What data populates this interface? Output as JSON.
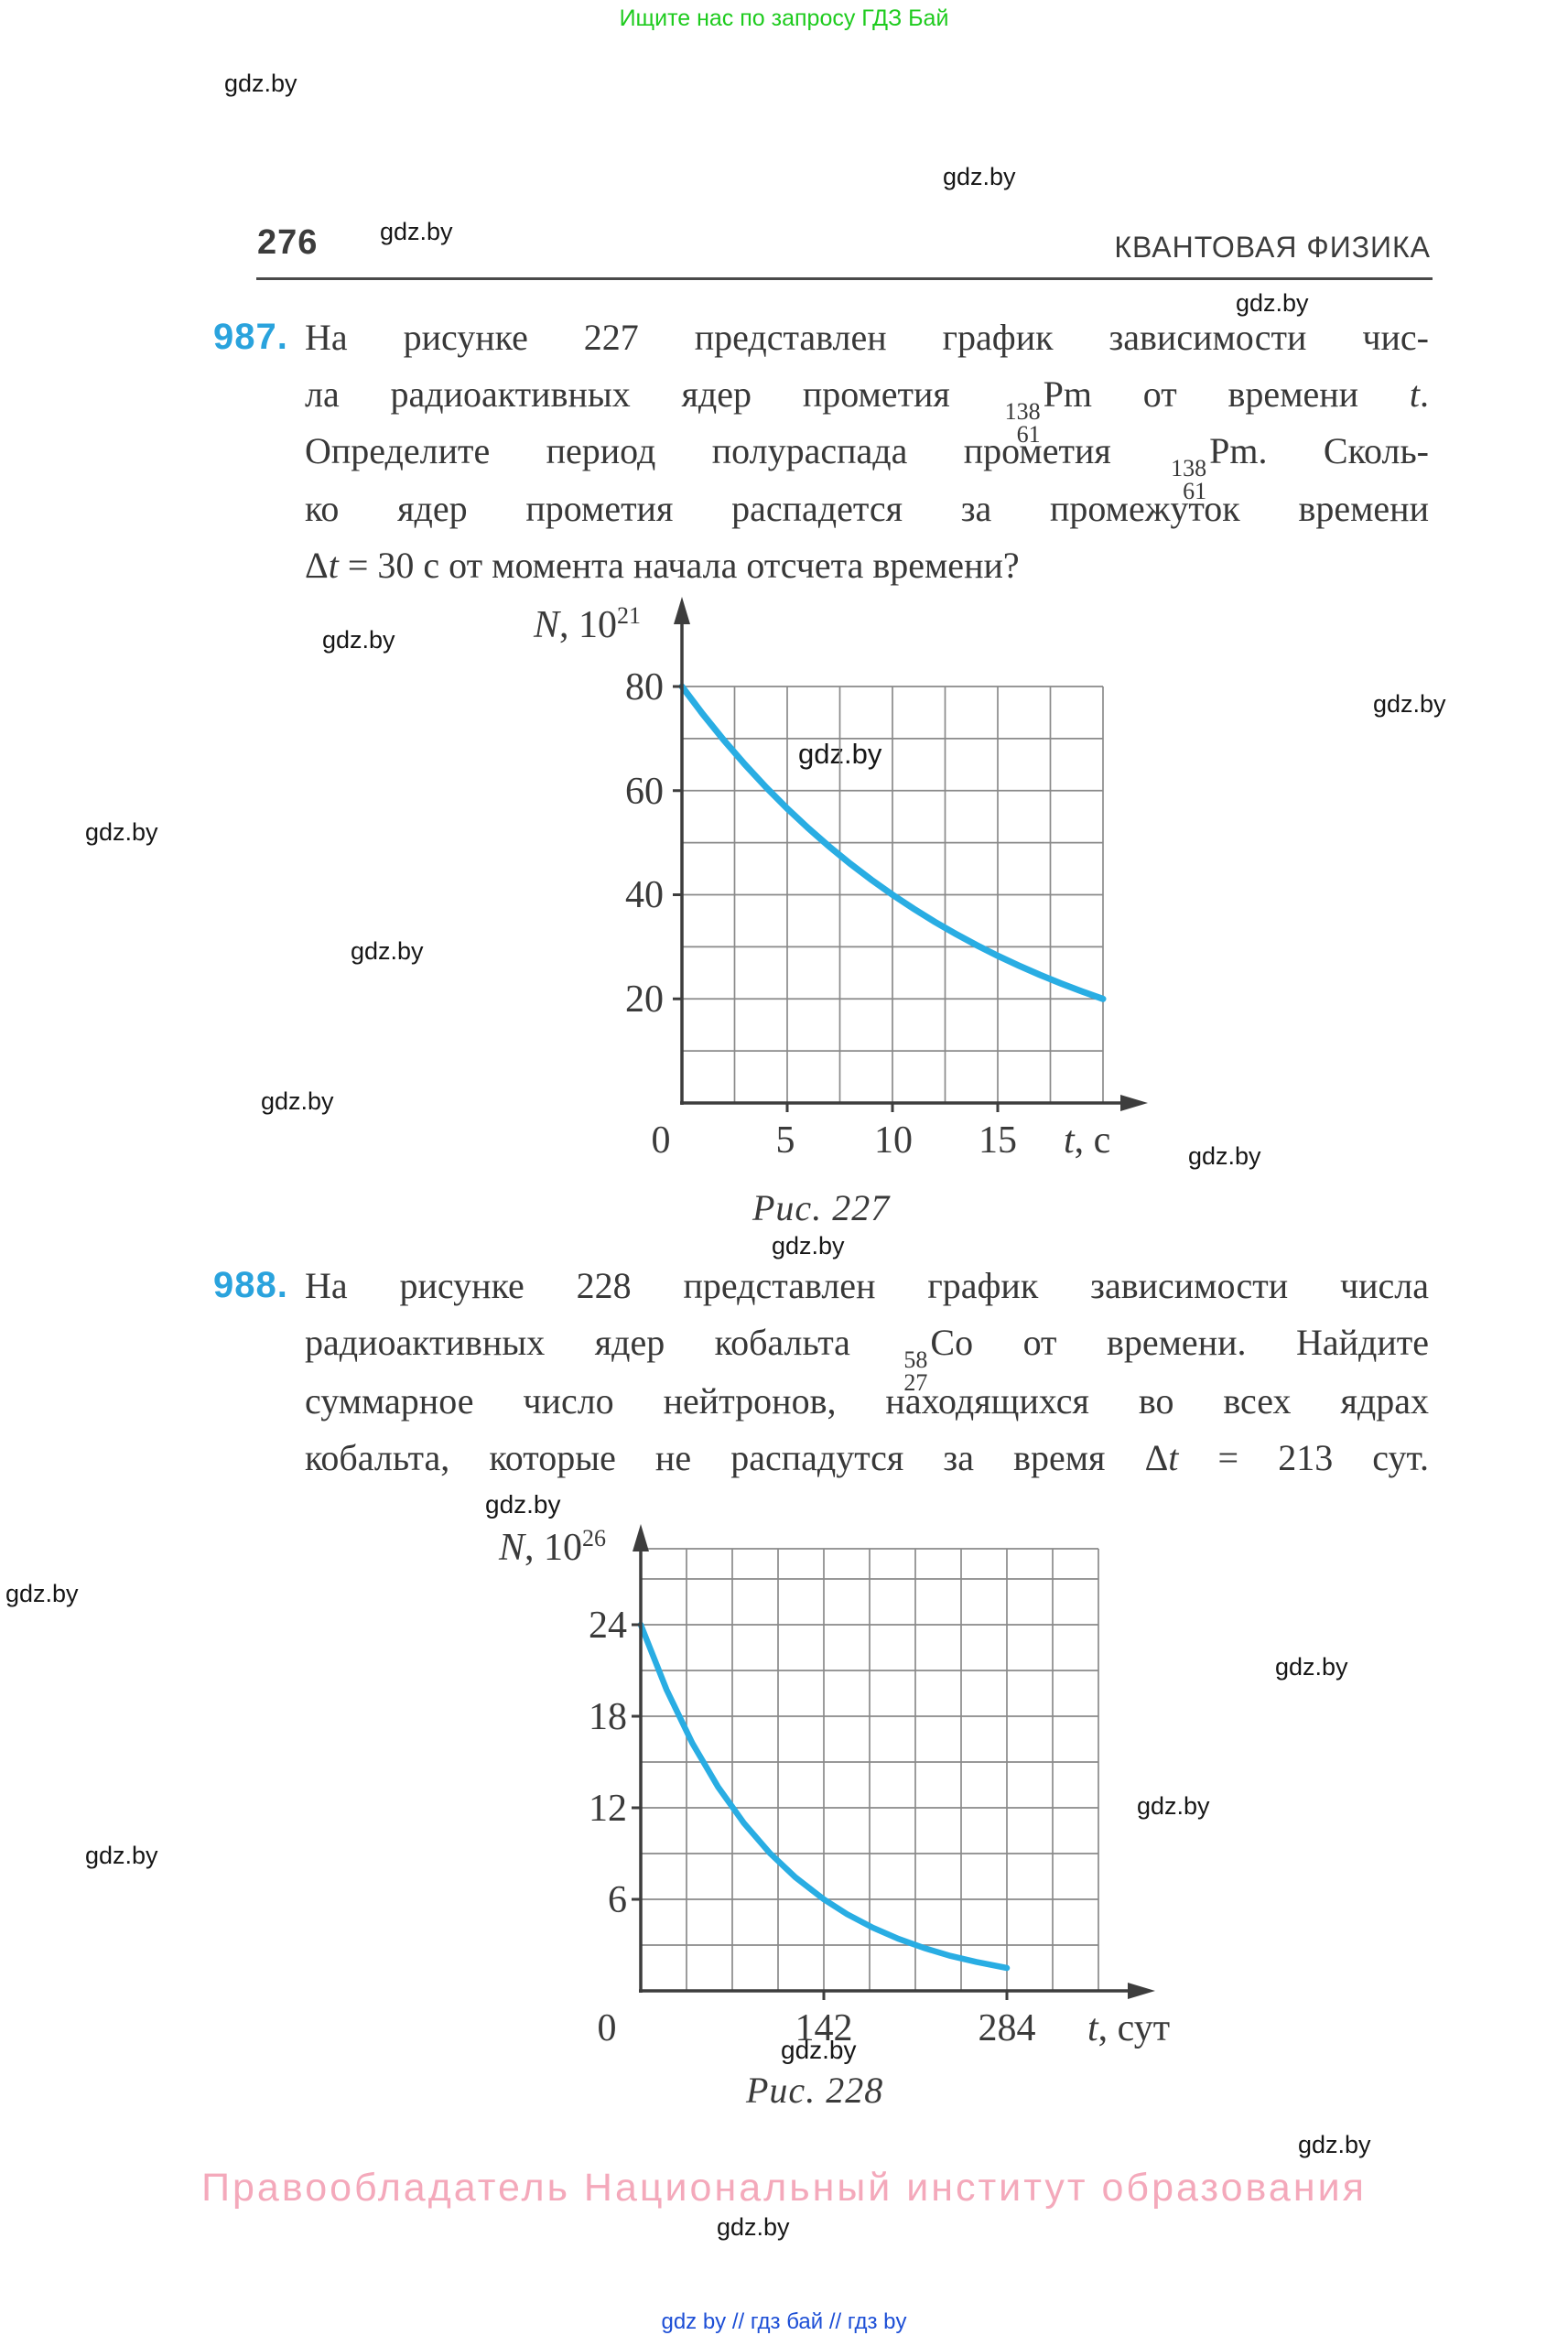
{
  "top_note": "Ищите нас по запросу ГДЗ Бай",
  "watermark": "gdz.by",
  "header": {
    "page_number": "276",
    "title": "КВАНТОВАЯ ФИЗИКА"
  },
  "problems": {
    "p987": {
      "number": "987.",
      "line1": "На рисунке 227 представлен график зависимости чис-",
      "line2_pre": "ла радиоактивных ядер прометия",
      "nuclide": {
        "mass": "138",
        "charge": "61",
        "symbol": "Pm"
      },
      "line2_mid": "от времени",
      "line2_var": "t",
      "line2_end": ".",
      "line3_pre": "Определите период полураспада прометия",
      "line3_end": ". Сколь-",
      "line4": "ко ядер прометия распадется за промежуток времени",
      "line5_delta": "Δ",
      "line5_var": "t",
      "line5_end": " = 30 с от момента начала отсчета времени?"
    },
    "p988": {
      "number": "988.",
      "line1": "На рисунке 228 представлен график зависимости числа",
      "line2_pre": "радиоактивных ядер кобальта",
      "nuclide": {
        "mass": "58",
        "charge": "27",
        "symbol": "Co"
      },
      "line2_end": "от времени. Найдите",
      "line3": "суммарное число нейтронов, находящихся во всех ядрах",
      "line4_pre": "кобальта, которые не распадутся за время ",
      "line4_delta": "Δ",
      "line4_var": "t",
      "line4_end": " = 213 сут."
    }
  },
  "figures": {
    "fig227": {
      "caption": "Рис. 227"
    },
    "fig228": {
      "caption": "Рис. 228"
    }
  },
  "chart_data": [
    {
      "type": "line",
      "figure": "Рис. 227",
      "ylabel_var": "N",
      "ylabel_rest": ", 10",
      "ylabel_exp": "21",
      "xlabel_var": "t",
      "xlabel_unit": ", с",
      "x_tick_labels": [
        "0",
        "5",
        "10",
        "15"
      ],
      "y_tick_labels": [
        "80",
        "60",
        "40",
        "20"
      ],
      "xlim": [
        0,
        20
      ],
      "ylim": [
        0,
        80
      ],
      "grid": true,
      "x_grid_step": 2.5,
      "y_grid_step": 10,
      "key_points": [
        {
          "t": 0,
          "N": 80
        },
        {
          "t": 5,
          "N": 56.6
        },
        {
          "t": 10,
          "N": 40
        },
        {
          "t": 15,
          "N": 28.3
        },
        {
          "t": 20,
          "N": 20
        }
      ],
      "half_life_readoff": 10,
      "curve_samples": [
        {
          "t": 0,
          "N": 80
        },
        {
          "t": 1,
          "N": 74.64
        },
        {
          "t": 2,
          "N": 69.64
        },
        {
          "t": 3,
          "N": 64.98
        },
        {
          "t": 4,
          "N": 60.63
        },
        {
          "t": 5,
          "N": 56.57
        },
        {
          "t": 6,
          "N": 52.78
        },
        {
          "t": 7,
          "N": 49.25
        },
        {
          "t": 8,
          "N": 45.95
        },
        {
          "t": 9,
          "N": 42.87
        },
        {
          "t": 10,
          "N": 40
        },
        {
          "t": 11,
          "N": 37.32
        },
        {
          "t": 12,
          "N": 34.82
        },
        {
          "t": 13,
          "N": 32.49
        },
        {
          "t": 14,
          "N": 30.31
        },
        {
          "t": 15,
          "N": 28.28
        },
        {
          "t": 16,
          "N": 26.39
        },
        {
          "t": 17,
          "N": 24.62
        },
        {
          "t": 18,
          "N": 22.97
        },
        {
          "t": 19,
          "N": 21.44
        },
        {
          "t": 20,
          "N": 20
        }
      ]
    },
    {
      "type": "line",
      "figure": "Рис. 228",
      "ylabel_var": "N",
      "ylabel_rest": ", 10",
      "ylabel_exp": "26",
      "xlabel_var": "t",
      "xlabel_unit": ", сут",
      "x_tick_labels": [
        "0",
        "142",
        "284"
      ],
      "y_tick_labels": [
        "24",
        "18",
        "12",
        "6"
      ],
      "xlim": [
        0,
        355
      ],
      "ylim": [
        0,
        29
      ],
      "grid": true,
      "x_grid_step": 35.5,
      "y_grid_step": 3,
      "key_points": [
        {
          "t": 0,
          "N": 24
        },
        {
          "t": 71,
          "N": 12
        },
        {
          "t": 142,
          "N": 6
        },
        {
          "t": 284,
          "N": 1.5
        }
      ],
      "half_life_readoff": 71,
      "curve_samples": [
        {
          "t": 0,
          "N": 24
        },
        {
          "t": 20,
          "N": 19.74
        },
        {
          "t": 40,
          "N": 16.24
        },
        {
          "t": 60,
          "N": 13.36
        },
        {
          "t": 80,
          "N": 10.99
        },
        {
          "t": 100,
          "N": 9.04
        },
        {
          "t": 120,
          "N": 7.44
        },
        {
          "t": 142,
          "N": 6
        },
        {
          "t": 160,
          "N": 5.03
        },
        {
          "t": 180,
          "N": 4.14
        },
        {
          "t": 200,
          "N": 3.41
        },
        {
          "t": 220,
          "N": 2.8
        },
        {
          "t": 240,
          "N": 2.3
        },
        {
          "t": 260,
          "N": 1.9
        },
        {
          "t": 284,
          "N": 1.5
        }
      ]
    }
  ],
  "footer": {
    "copyright": "Правообладатель Национальный институт образования",
    "links": "gdz by  //  гдз бай  //  гдз by"
  }
}
